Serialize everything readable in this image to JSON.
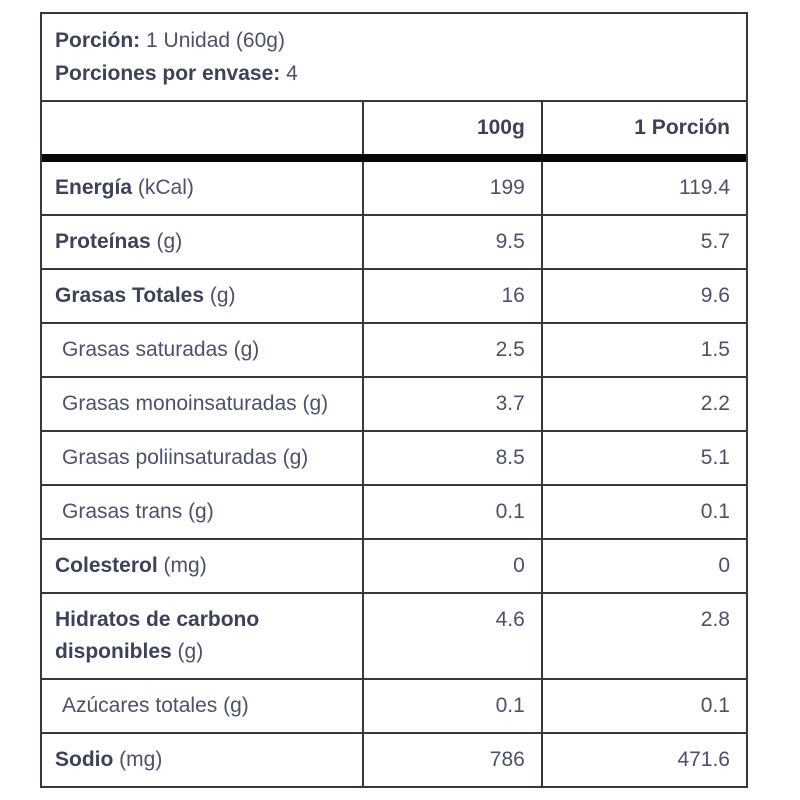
{
  "colors": {
    "bg": "#ffffff",
    "border_thin": "#34383f",
    "border_thick": "#070707",
    "text_strong": "#3c4357",
    "text_regular": "#4c5267"
  },
  "serving": {
    "portion_label": "Porción:",
    "portion_value": "1 Unidad (60g)",
    "servings_label": "Porciones por envase:",
    "servings_value": "4"
  },
  "table": {
    "columns": [
      "",
      "100g",
      "1 Porción"
    ],
    "rows": [
      {
        "name": "Energía",
        "unit": "(kCal)",
        "emphasis": "bold",
        "indent": false,
        "per100g": "199",
        "per_portion": "119.4"
      },
      {
        "name": "Proteínas",
        "unit": "(g)",
        "emphasis": "bold",
        "indent": false,
        "per100g": "9.5",
        "per_portion": "5.7"
      },
      {
        "name": "Grasas Totales",
        "unit": "(g)",
        "emphasis": "bold",
        "indent": false,
        "per100g": "16",
        "per_portion": "9.6"
      },
      {
        "name": "Grasas saturadas",
        "unit": "(g)",
        "emphasis": "regular",
        "indent": true,
        "per100g": "2.5",
        "per_portion": "1.5"
      },
      {
        "name": "Grasas monoinsaturadas",
        "unit": "(g)",
        "emphasis": "regular",
        "indent": true,
        "per100g": "3.7",
        "per_portion": "2.2"
      },
      {
        "name": "Grasas poliinsaturadas",
        "unit": "(g)",
        "emphasis": "regular",
        "indent": true,
        "per100g": "8.5",
        "per_portion": "5.1"
      },
      {
        "name": "Grasas trans",
        "unit": "(g)",
        "emphasis": "regular",
        "indent": true,
        "per100g": "0.1",
        "per_portion": "0.1"
      },
      {
        "name": "Colesterol",
        "unit": "(mg)",
        "emphasis": "bold",
        "indent": false,
        "per100g": "0",
        "per_portion": "0"
      },
      {
        "name": "Hidratos de carbono disponibles",
        "unit": "(g)",
        "emphasis": "bold",
        "indent": false,
        "per100g": "4.6",
        "per_portion": "2.8"
      },
      {
        "name": "Azúcares totales",
        "unit": "(g)",
        "emphasis": "regular",
        "indent": true,
        "per100g": "0.1",
        "per_portion": "0.1"
      },
      {
        "name": "Sodio",
        "unit": "(mg)",
        "emphasis": "bold",
        "indent": false,
        "per100g": "786",
        "per_portion": "471.6"
      }
    ]
  }
}
